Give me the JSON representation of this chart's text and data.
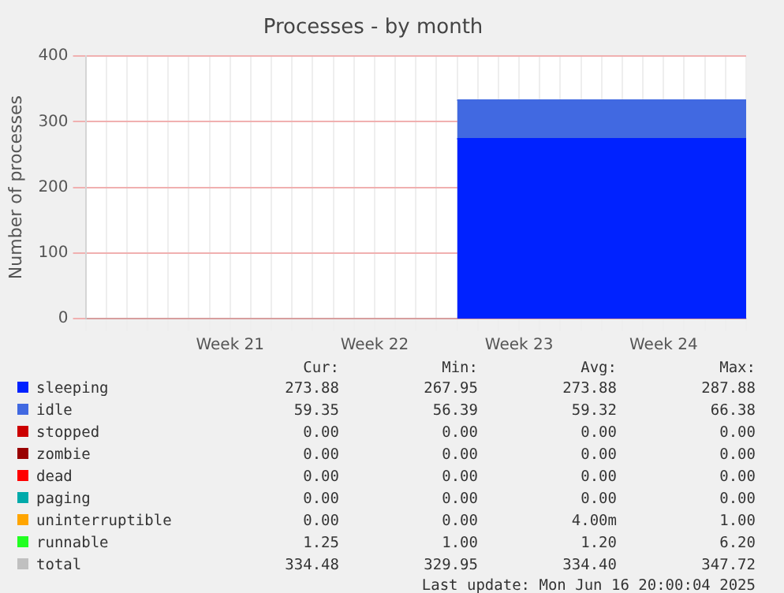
{
  "chart_data": {
    "type": "area",
    "title": "Processes - by month",
    "ylabel": "Number of processes",
    "stacked": true,
    "categories": [
      null,
      null,
      null,
      null,
      null,
      null,
      null,
      "Week 21",
      null,
      null,
      null,
      null,
      null,
      null,
      "Week 22",
      null,
      null,
      null,
      null,
      null,
      null,
      "Week 23",
      null,
      null,
      null,
      null,
      null,
      null,
      "Week 24",
      null,
      null,
      null,
      null
    ],
    "ylim": [
      0,
      400
    ],
    "yticks": [
      0,
      100,
      200,
      300,
      400
    ],
    "grid": true,
    "legend": "bottom",
    "series": [
      {
        "name": "sleeping",
        "color": "#0022ff",
        "values": [
          null,
          null,
          null,
          null,
          null,
          null,
          null,
          null,
          null,
          null,
          null,
          null,
          null,
          null,
          null,
          null,
          null,
          null,
          274,
          274,
          274,
          274,
          274,
          274,
          274,
          274,
          274,
          274,
          274,
          274,
          274,
          274,
          274
        ]
      },
      {
        "name": "idle",
        "color": "#4169e1",
        "values": [
          null,
          null,
          null,
          null,
          null,
          null,
          null,
          null,
          null,
          null,
          null,
          null,
          null,
          null,
          null,
          null,
          null,
          null,
          59,
          59,
          59,
          59,
          59,
          59,
          59,
          59,
          59,
          59,
          59,
          59,
          59,
          59,
          59
        ]
      },
      {
        "name": "stopped",
        "color": "#cc0000",
        "values": [
          null,
          null,
          null,
          null,
          null,
          null,
          null,
          null,
          null,
          null,
          null,
          null,
          null,
          null,
          null,
          null,
          null,
          null,
          null,
          null,
          null,
          null,
          null,
          null,
          null,
          null,
          null,
          null,
          null,
          null,
          null,
          null,
          null
        ]
      },
      {
        "name": "zombie",
        "color": "#990000",
        "values": [
          null,
          null,
          null,
          null,
          null,
          null,
          null,
          null,
          null,
          null,
          null,
          null,
          null,
          null,
          null,
          null,
          null,
          null,
          null,
          null,
          null,
          null,
          null,
          null,
          null,
          null,
          null,
          null,
          null,
          null,
          null,
          null,
          null
        ]
      },
      {
        "name": "dead",
        "color": "#ff0000",
        "values": [
          null,
          null,
          null,
          null,
          null,
          null,
          null,
          null,
          null,
          null,
          null,
          null,
          null,
          null,
          null,
          null,
          null,
          null,
          null,
          null,
          null,
          null,
          null,
          null,
          null,
          null,
          null,
          null,
          null,
          null,
          null,
          null,
          null
        ]
      },
      {
        "name": "paging",
        "color": "#00aaaa",
        "values": [
          null,
          null,
          null,
          null,
          null,
          null,
          null,
          null,
          null,
          null,
          null,
          null,
          null,
          null,
          null,
          null,
          null,
          null,
          null,
          null,
          null,
          null,
          null,
          null,
          null,
          null,
          null,
          null,
          null,
          null,
          null,
          null,
          null
        ]
      },
      {
        "name": "uninterruptible",
        "color": "#ffa500",
        "values": [
          null,
          null,
          null,
          null,
          null,
          null,
          null,
          null,
          null,
          null,
          null,
          null,
          null,
          null,
          null,
          null,
          null,
          null,
          null,
          null,
          null,
          null,
          null,
          null,
          null,
          null,
          null,
          null,
          null,
          null,
          null,
          null,
          null
        ]
      },
      {
        "name": "runnable",
        "color": "#22ff22",
        "values": [
          null,
          null,
          null,
          null,
          null,
          null,
          null,
          null,
          null,
          null,
          null,
          null,
          null,
          null,
          null,
          null,
          null,
          null,
          null,
          null,
          null,
          null,
          null,
          null,
          null,
          null,
          null,
          null,
          null,
          null,
          null,
          null,
          null
        ]
      },
      {
        "name": "total",
        "color": "#c0c0c0",
        "values": [
          null,
          null,
          null,
          null,
          null,
          null,
          null,
          null,
          null,
          null,
          null,
          null,
          null,
          null,
          null,
          null,
          null,
          null,
          null,
          null,
          null,
          null,
          null,
          null,
          null,
          null,
          null,
          null,
          null,
          null,
          null,
          null,
          null
        ]
      }
    ],
    "annotations": [
      "Cur:",
      "Min:",
      "Avg:",
      "Max:",
      "273.88",
      "267.95",
      "273.88",
      "287.88",
      "59.35",
      "56.39",
      "59.32",
      "66.38",
      "0.00",
      "0.00",
      "0.00",
      "0.00",
      "0.00",
      "0.00",
      "0.00",
      "0.00",
      "0.00",
      "0.00",
      "0.00",
      "0.00",
      "0.00",
      "0.00",
      "0.00",
      "0.00",
      "0.00",
      "0.00",
      "4.00m",
      "1.00",
      "1.25",
      "1.00",
      "1.20",
      "6.20",
      "334.48",
      "329.95",
      "334.40",
      "347.72",
      "Last update: Mon Jun 16 20:00:04 2025"
    ]
  }
}
